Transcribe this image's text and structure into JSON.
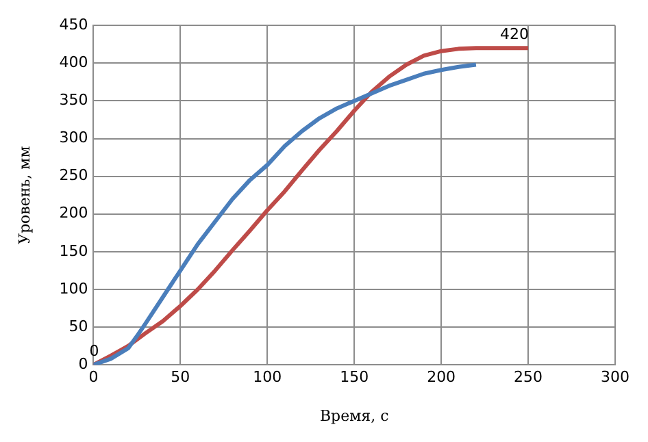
{
  "chart_data": {
    "type": "line",
    "xlabel": "Время, с",
    "ylabel": "Уровень, мм",
    "xlim": [
      0,
      300
    ],
    "xticks": [
      0,
      50,
      100,
      150,
      200,
      250,
      300
    ],
    "ylim": [
      0,
      450
    ],
    "yticks": [
      0,
      50,
      100,
      150,
      200,
      250,
      300,
      350,
      400,
      450
    ],
    "grid": true,
    "legend": false,
    "marker": "none",
    "line_style": "solid",
    "annotations": [
      {
        "text": "0",
        "x": 0,
        "y": 0
      },
      {
        "text": "420",
        "x": 250,
        "y": 420
      }
    ],
    "series": [
      {
        "color": "#4a7ebb",
        "x": [
          0,
          10,
          20,
          25,
          30,
          40,
          50,
          60,
          70,
          80,
          90,
          100,
          110,
          120,
          130,
          140,
          150,
          160,
          170,
          180,
          190,
          200,
          210,
          220
        ],
        "values": [
          0,
          8,
          22,
          38,
          55,
          90,
          125,
          160,
          190,
          220,
          245,
          265,
          290,
          310,
          327,
          340,
          350,
          360,
          370,
          378,
          386,
          391,
          395,
          398
        ]
      },
      {
        "color": "#be4b48",
        "x": [
          0,
          10,
          20,
          30,
          40,
          50,
          60,
          70,
          80,
          90,
          100,
          110,
          120,
          130,
          140,
          150,
          160,
          170,
          180,
          190,
          200,
          210,
          220,
          250
        ],
        "values": [
          0,
          12,
          25,
          42,
          58,
          78,
          100,
          125,
          152,
          178,
          205,
          230,
          258,
          285,
          310,
          337,
          362,
          382,
          398,
          410,
          416,
          419,
          420,
          420
        ]
      }
    ]
  }
}
